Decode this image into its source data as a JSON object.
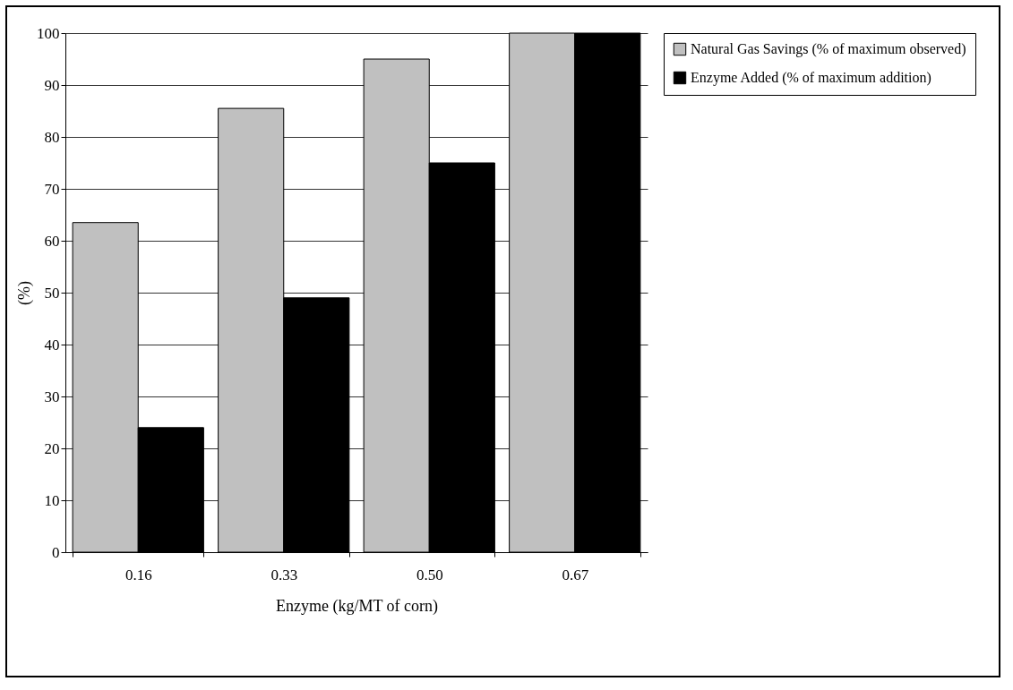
{
  "chart_data": {
    "type": "bar",
    "xlabel": "Enzyme (kg/MT of corn)",
    "ylabel": "(%)",
    "categories": [
      "0.16",
      "0.33",
      "0.50",
      "0.67"
    ],
    "series": [
      {
        "name": "Natural Gas Savings (% of maximum observed)",
        "color": "#c0c0c0",
        "values": [
          63.5,
          85.5,
          95,
          100
        ]
      },
      {
        "name": "Enzyme Added (% of maximum addition)",
        "color": "#000000",
        "values": [
          24,
          49,
          75,
          100
        ]
      }
    ],
    "ylim": [
      0,
      100
    ],
    "yticks": [
      0,
      10,
      20,
      30,
      40,
      50,
      60,
      70,
      80,
      90,
      100
    ],
    "grid": "y",
    "legend": "right"
  }
}
